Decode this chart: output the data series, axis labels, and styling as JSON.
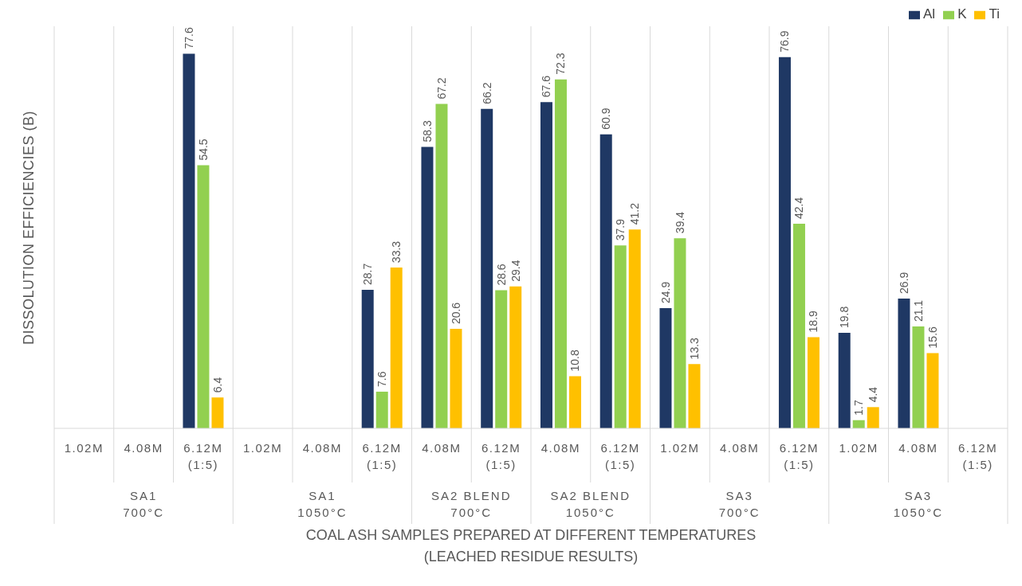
{
  "chart_data": {
    "type": "bar",
    "xlabel": "COAL ASH SAMPLES PREPARED AT DIFFERENT TEMPERATURES\n(LEACHED RESIDUE RESULTS)",
    "ylabel": "DISSOLUTION EFFICIENCIES (B)",
    "categories": [
      "1.02M",
      "4.08M",
      "6.12M\n(1:5)",
      "1.02M",
      "4.08M",
      "6.12M\n(1:5)",
      "4.08M",
      "6.12M\n(1:5)",
      "4.08M",
      "6.12M\n(1:5)",
      "1.02M",
      "4.08M",
      "6.12M\n(1:5)",
      "1.02M",
      "4.08M",
      "6.12M\n(1:5)"
    ],
    "annotations": [
      "SA1\n700°C",
      "SA1\n1050°C",
      "SA2 BLEND\n700°C",
      "SA2 BLEND\n1050°C",
      "SA3\n700°C",
      "SA3\n1050°C"
    ],
    "series": [
      {
        "name": "Al",
        "color": "#1f3864",
        "values": [
          null,
          null,
          77.6,
          null,
          null,
          28.7,
          58.3,
          66.2,
          67.6,
          60.9,
          24.9,
          null,
          76.9,
          19.8,
          26.9,
          null
        ]
      },
      {
        "name": "K",
        "color": "#92d050",
        "values": [
          null,
          null,
          54.5,
          null,
          null,
          7.6,
          67.2,
          28.6,
          72.3,
          37.9,
          39.4,
          null,
          42.4,
          1.7,
          21.1,
          null
        ]
      },
      {
        "name": "Ti",
        "color": "#ffc000",
        "values": [
          null,
          null,
          6.4,
          null,
          null,
          33.3,
          20.6,
          29.4,
          10.8,
          41.2,
          13.3,
          null,
          18.9,
          4.4,
          15.6,
          null
        ]
      }
    ],
    "data_labels": true,
    "legend": "top right",
    "grid": "x"
  }
}
